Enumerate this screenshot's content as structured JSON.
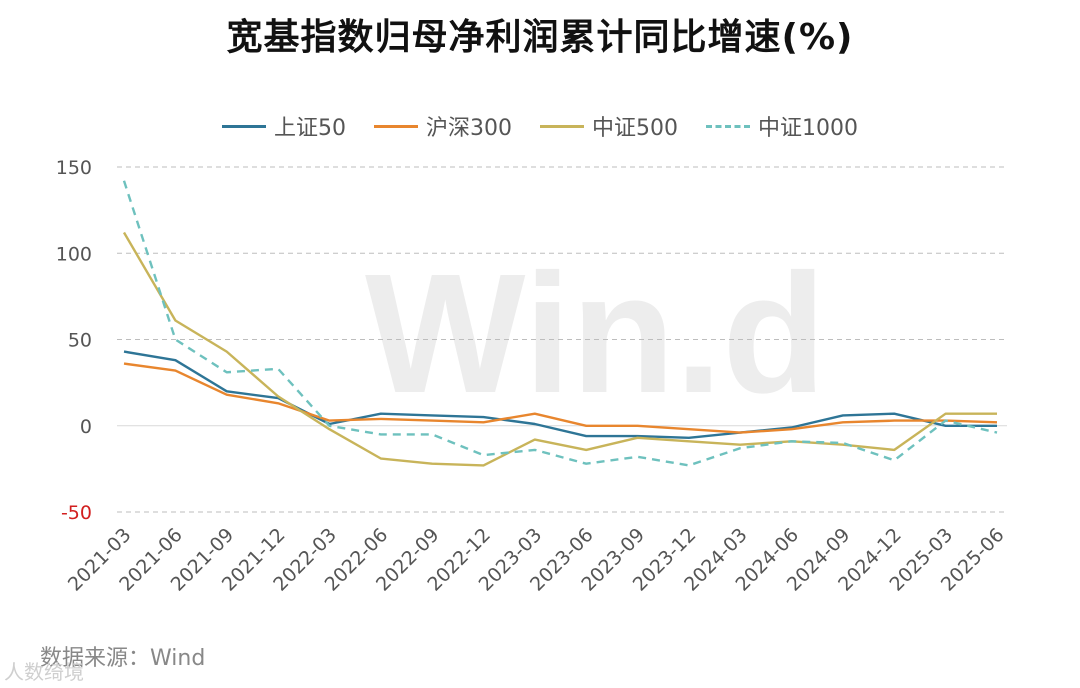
{
  "title": "宽基指数归母净利润累计同比增速(%)",
  "source": "数据来源：Wind",
  "watermark": "Win.d",
  "brand": "人数绮境",
  "chart_data": {
    "type": "line",
    "categories": [
      "2021-03",
      "2021-06",
      "2021-09",
      "2021-12",
      "2022-03",
      "2022-06",
      "2022-09",
      "2022-12",
      "2023-03",
      "2023-06",
      "2023-09",
      "2023-12",
      "2024-03",
      "2024-06",
      "2024-09",
      "2024-12",
      "2025-03",
      "2025-06"
    ],
    "ylim": [
      -50,
      150
    ],
    "yticks": [
      -50,
      0,
      50,
      100,
      150
    ],
    "legend_position": "top",
    "grid": "horizontal-dashed",
    "series": [
      {
        "name": "上证50",
        "color": "#2e7596",
        "dashed": false,
        "values": [
          43,
          38,
          20,
          16,
          1,
          7,
          6,
          5,
          1,
          -6,
          -6,
          -7,
          -4,
          -1,
          6,
          7,
          0,
          0
        ]
      },
      {
        "name": "沪深300",
        "color": "#e8862e",
        "dashed": false,
        "values": [
          36,
          32,
          18,
          13,
          3,
          4,
          3,
          2,
          7,
          0,
          0,
          -2,
          -4,
          -2,
          2,
          3,
          3,
          2
        ]
      },
      {
        "name": "中证500",
        "color": "#c8b45a",
        "dashed": false,
        "values": [
          112,
          61,
          43,
          17,
          -2,
          -19,
          -22,
          -23,
          -8,
          -14,
          -7,
          -9,
          -11,
          -9,
          -11,
          -14,
          7,
          7
        ]
      },
      {
        "name": "中证1000",
        "color": "#6ec1be",
        "dashed": true,
        "values": [
          142,
          50,
          31,
          33,
          0,
          -5,
          -5,
          -17,
          -14,
          -22,
          -18,
          -23,
          -13,
          -9,
          -10,
          -20,
          3,
          -4
        ]
      }
    ]
  }
}
